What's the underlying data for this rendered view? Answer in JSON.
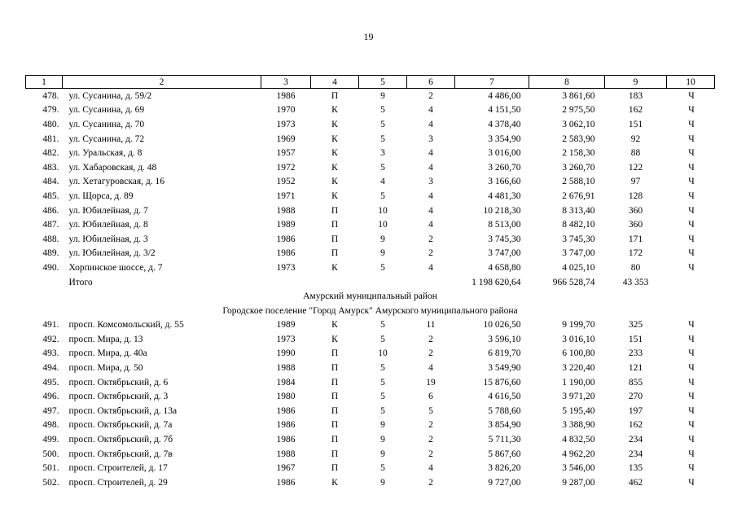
{
  "page_number": "19",
  "columns": [
    "1",
    "2",
    "3",
    "4",
    "5",
    "6",
    "7",
    "8",
    "9",
    "10"
  ],
  "group1": [
    [
      "478.",
      "ул. Сусанина, д. 59/2",
      "1986",
      "П",
      "9",
      "2",
      "4 486,00",
      "3 861,60",
      "183",
      "Ч"
    ],
    [
      "479.",
      "ул. Сусанина, д. 69",
      "1970",
      "К",
      "5",
      "4",
      "4 151,50",
      "2 975,50",
      "162",
      "Ч"
    ],
    [
      "480.",
      "ул. Сусанина, д. 70",
      "1973",
      "К",
      "5",
      "4",
      "4 378,40",
      "3 062,10",
      "151",
      "Ч"
    ],
    [
      "481.",
      "ул. Сусанина, д. 72",
      "1969",
      "К",
      "5",
      "3",
      "3 354,90",
      "2 583,90",
      "92",
      "Ч"
    ],
    [
      "482.",
      "ул. Уральская, д. 8",
      "1957",
      "К",
      "3",
      "4",
      "3 016,00",
      "2 158,30",
      "88",
      "Ч"
    ],
    [
      "483.",
      "ул. Хабаровская, д. 48",
      "1972",
      "К",
      "5",
      "4",
      "3 260,70",
      "3 260,70",
      "122",
      "Ч"
    ],
    [
      "484.",
      "ул. Хетагуровская, д. 16",
      "1952",
      "К",
      "4",
      "3",
      "3 166,60",
      "2 588,10",
      "97",
      "Ч"
    ],
    [
      "485.",
      "ул. Щорса, д. 89",
      "1971",
      "К",
      "5",
      "4",
      "4 481,30",
      "2 676,91",
      "128",
      "Ч"
    ],
    [
      "486.",
      "ул. Юбилейная, д. 7",
      "1988",
      "П",
      "10",
      "4",
      "10 218,30",
      "8 313,40",
      "360",
      "Ч"
    ],
    [
      "487.",
      "ул. Юбилейная, д. 8",
      "1989",
      "П",
      "10",
      "4",
      "8 513,00",
      "8 482,10",
      "360",
      "Ч"
    ],
    [
      "488.",
      "ул. Юбилейная, д. 3",
      "1986",
      "П",
      "9",
      "2",
      "3 745,30",
      "3 745,30",
      "171",
      "Ч"
    ],
    [
      "489.",
      "ул. Юбилейная, д. 3/2",
      "1986",
      "П",
      "9",
      "2",
      "3 747,00",
      "3 747,00",
      "172",
      "Ч"
    ],
    [
      "490.",
      "Хорпинское шоссе, д. 7",
      "1973",
      "К",
      "5",
      "4",
      "4 658,80",
      "4 025,10",
      "80",
      "Ч"
    ]
  ],
  "total": {
    "label": "Итого",
    "area_total": "1 198 620,64",
    "area_living": "966 528,74",
    "residents": "43 353"
  },
  "district_heading": "Амурский муниципальный район",
  "settlement_heading": "Городское поселение \"Город Амурск\" Амурского муниципального района",
  "group2": [
    [
      "491.",
      "просп. Комсомольский, д. 55",
      "1989",
      "К",
      "5",
      "11",
      "10 026,50",
      "9 199,70",
      "325",
      "Ч"
    ],
    [
      "492.",
      "просп. Мира, д. 13",
      "1973",
      "К",
      "5",
      "2",
      "3 596,10",
      "3 016,10",
      "151",
      "Ч"
    ],
    [
      "493.",
      "просп. Мира, д. 40а",
      "1990",
      "П",
      "10",
      "2",
      "6 819,70",
      "6 100,80",
      "233",
      "Ч"
    ],
    [
      "494.",
      "просп. Мира, д. 50",
      "1988",
      "П",
      "5",
      "4",
      "3 549,90",
      "3 220,40",
      "121",
      "Ч"
    ],
    [
      "495.",
      "просп. Октябрьский, д. 6",
      "1984",
      "П",
      "5",
      "19",
      "15 876,60",
      "1 190,00",
      "855",
      "Ч"
    ],
    [
      "496.",
      "просп. Октябрьский, д. 3",
      "1980",
      "П",
      "5",
      "6",
      "4 616,50",
      "3 971,20",
      "270",
      "Ч"
    ],
    [
      "497.",
      "просп. Октябрьский, д. 13а",
      "1986",
      "П",
      "5",
      "5",
      "5 788,60",
      "5 195,40",
      "197",
      "Ч"
    ],
    [
      "498.",
      "просп. Октябрьский, д. 7а",
      "1986",
      "П",
      "9",
      "2",
      "3 854,90",
      "3 388,90",
      "162",
      "Ч"
    ],
    [
      "499.",
      "просп. Октябрьский, д. 7б",
      "1986",
      "П",
      "9",
      "2",
      "5 711,30",
      "4 832,50",
      "234",
      "Ч"
    ],
    [
      "500.",
      "просп. Октябрьский, д. 7в",
      "1988",
      "П",
      "9",
      "2",
      "5 867,60",
      "4 962,20",
      "234",
      "Ч"
    ],
    [
      "501.",
      "просп. Строителей, д. 17",
      "1967",
      "П",
      "5",
      "4",
      "3 826,20",
      "3 546,00",
      "135",
      "Ч"
    ],
    [
      "502.",
      "просп. Строителей, д. 29",
      "1986",
      "К",
      "9",
      "2",
      "9 727,00",
      "9 287,00",
      "462",
      "Ч"
    ]
  ]
}
